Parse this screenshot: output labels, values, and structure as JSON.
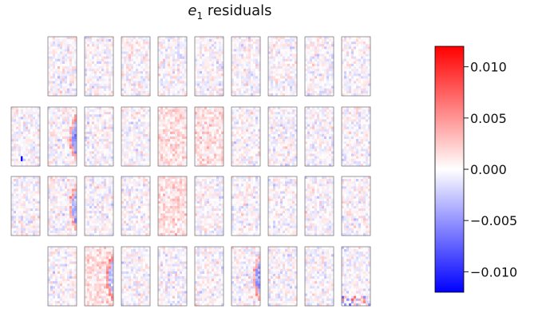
{
  "chart_data": {
    "type": "heatmap",
    "title": "e₁ residuals",
    "title_parts": {
      "symbol": "e",
      "subscript": "1",
      "rest": " residuals"
    },
    "layout": {
      "rows": [
        9,
        10,
        10,
        9
      ],
      "description": "focal-plane mosaic of 38 CCD panels showing per-pixel residual maps"
    },
    "colorbar": {
      "cmap": "bwr",
      "vmin": -0.012,
      "vmax": 0.012,
      "ticks": [
        {
          "value": 0.01,
          "label": "0.010"
        },
        {
          "value": 0.005,
          "label": "0.005"
        },
        {
          "value": 0.0,
          "label": "0.000"
        },
        {
          "value": -0.005,
          "label": "−0.005"
        },
        {
          "value": -0.01,
          "label": "−0.010"
        }
      ],
      "colors": {
        "low": "#0000ff",
        "mid": "#ffffff",
        "high": "#ff0000"
      }
    },
    "features": {
      "arc_panels": [
        "r1c1",
        "r2c1",
        "r3c1",
        "r3c5"
      ],
      "warm_panels": [
        "r1c4",
        "r1c5",
        "r2c4",
        "r3c1"
      ],
      "noisy_corner_panel": "r3c8",
      "outlier_pixel_panel": "r1c0"
    }
  }
}
